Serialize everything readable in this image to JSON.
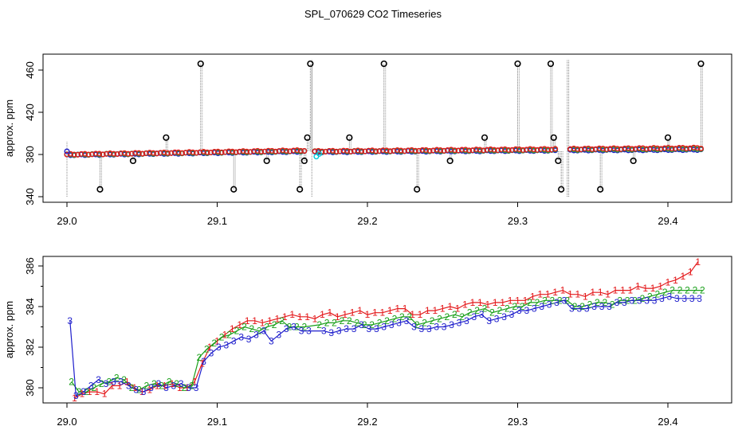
{
  "figure_title": "SPL_070629  CO2 Timeseries",
  "chart_data": [
    {
      "type": "scatter",
      "panel": "top",
      "title": "SPL_070629  CO2 Timeseries",
      "xlabel": "",
      "ylabel": "approx. ppm",
      "xlim": [
        29.0,
        29.43
      ],
      "ylim": [
        340,
        470
      ],
      "x_ticks": [
        "29.0",
        "29.1",
        "29.2",
        "29.3",
        "29.4"
      ],
      "y_ticks": [
        "340",
        "380",
        "420",
        "460"
      ],
      "series": [
        {
          "name": "1",
          "color": "#e41a1c",
          "segments": [
            [
              29.0,
              29.158,
              380.0,
              383.8
            ],
            [
              29.165,
              29.325,
              383.0,
              385.0
            ],
            [
              29.335,
              29.422,
              385.2,
              386.2
            ]
          ]
        },
        {
          "name": "2",
          "color": "#33a02c",
          "segments": [
            [
              29.0,
              29.158,
              379.8,
              383.3
            ],
            [
              29.165,
              29.325,
              382.8,
              384.3
            ],
            [
              29.335,
              29.422,
              384.6,
              385.4
            ]
          ]
        },
        {
          "name": "3",
          "color": "#1f1fcc",
          "segments": [
            [
              29.0,
              29.158,
              379.5,
              382.8
            ],
            [
              29.165,
              29.325,
              382.3,
              383.8
            ],
            [
              29.335,
              29.422,
              384.0,
              384.6
            ]
          ]
        },
        {
          "name": "cyan",
          "color": "#00c8d8",
          "points": [
            [
              29.166,
              378.0
            ],
            [
              29.168,
              380.5
            ]
          ]
        }
      ],
      "spikes": [
        {
          "x": 29.022,
          "y": 347
        },
        {
          "x": 29.044,
          "y": 374
        },
        {
          "x": 29.066,
          "y": 396
        },
        {
          "x": 29.089,
          "y": 466
        },
        {
          "x": 29.111,
          "y": 347
        },
        {
          "x": 29.133,
          "y": 374
        },
        {
          "x": 29.155,
          "y": 347
        },
        {
          "x": 29.158,
          "y": 374
        },
        {
          "x": 29.16,
          "y": 396
        },
        {
          "x": 29.162,
          "y": 466
        },
        {
          "x": 29.188,
          "y": 396
        },
        {
          "x": 29.211,
          "y": 466
        },
        {
          "x": 29.233,
          "y": 347
        },
        {
          "x": 29.255,
          "y": 374
        },
        {
          "x": 29.278,
          "y": 396
        },
        {
          "x": 29.3,
          "y": 466
        },
        {
          "x": 29.322,
          "y": 466
        },
        {
          "x": 29.324,
          "y": 396
        },
        {
          "x": 29.327,
          "y": 374
        },
        {
          "x": 29.329,
          "y": 347
        },
        {
          "x": 29.355,
          "y": 347
        },
        {
          "x": 29.377,
          "y": 374
        },
        {
          "x": 29.4,
          "y": 396
        },
        {
          "x": 29.422,
          "y": 466
        }
      ]
    },
    {
      "type": "line",
      "panel": "bottom",
      "title": "",
      "xlabel": "",
      "ylabel": "approx. ppm",
      "xlim": [
        29.0,
        29.43
      ],
      "ylim": [
        379.3,
        386.3
      ],
      "x_ticks": [
        "29.0",
        "29.1",
        "29.2",
        "29.3",
        "29.4"
      ],
      "y_ticks": [
        "380",
        "382",
        "384",
        "386"
      ],
      "series": [
        {
          "name": "1",
          "color": "#e41a1c",
          "x": [
            29.005,
            29.01,
            29.015,
            29.02,
            29.025,
            29.03,
            29.035,
            29.04,
            29.045,
            29.05,
            29.055,
            29.06,
            29.065,
            29.07,
            29.075,
            29.08,
            29.085,
            29.09,
            29.095,
            29.1,
            29.105,
            29.11,
            29.115,
            29.12,
            29.125,
            29.13,
            29.135,
            29.14,
            29.145,
            29.15,
            29.155,
            29.16,
            29.165,
            29.17,
            29.175,
            29.18,
            29.185,
            29.19,
            29.195,
            29.2,
            29.205,
            29.21,
            29.215,
            29.22,
            29.225,
            29.23,
            29.235,
            29.24,
            29.245,
            29.25,
            29.255,
            29.26,
            29.265,
            29.27,
            29.275,
            29.28,
            29.285,
            29.29,
            29.295,
            29.3,
            29.305,
            29.31,
            29.315,
            29.32,
            29.325,
            29.33,
            29.335,
            29.34,
            29.345,
            29.35,
            29.355,
            29.36,
            29.365,
            29.37,
            29.375,
            29.38,
            29.385,
            29.39,
            29.395,
            29.4,
            29.405,
            29.41,
            29.415,
            29.42
          ],
          "values": [
            379.5,
            379.7,
            379.8,
            379.8,
            379.7,
            380.1,
            380.1,
            380.3,
            380.0,
            379.8,
            379.9,
            380.1,
            380.1,
            380.2,
            380.0,
            380.0,
            380.3,
            381.2,
            382.0,
            382.3,
            382.6,
            382.9,
            383.1,
            383.3,
            383.3,
            383.2,
            383.3,
            383.4,
            383.5,
            383.6,
            383.5,
            383.5,
            383.4,
            383.6,
            383.7,
            383.5,
            383.6,
            383.7,
            383.8,
            383.6,
            383.7,
            383.7,
            383.8,
            383.9,
            383.9,
            383.6,
            383.6,
            383.8,
            383.8,
            383.9,
            384.0,
            383.9,
            384.1,
            384.2,
            384.2,
            384.1,
            384.2,
            384.2,
            384.3,
            384.3,
            384.3,
            384.5,
            384.6,
            384.6,
            384.7,
            384.8,
            384.6,
            384.6,
            384.5,
            384.7,
            384.7,
            384.6,
            384.8,
            384.8,
            384.8,
            385.0,
            384.9,
            384.9,
            385.0,
            385.2,
            385.3,
            385.5,
            385.7,
            386.2
          ]
        },
        {
          "name": "2",
          "color": "#1aa01a",
          "x": [
            29.003,
            29.008,
            29.013,
            29.018,
            29.023,
            29.028,
            29.033,
            29.038,
            29.043,
            29.048,
            29.053,
            29.058,
            29.063,
            29.068,
            29.073,
            29.078,
            29.083,
            29.088,
            29.093,
            29.098,
            29.103,
            29.108,
            29.113,
            29.118,
            29.123,
            29.128,
            29.133,
            29.138,
            29.143,
            29.148,
            29.153,
            29.158,
            29.168,
            29.173,
            29.178,
            29.183,
            29.188,
            29.193,
            29.198,
            29.203,
            29.208,
            29.213,
            29.218,
            29.223,
            29.228,
            29.233,
            29.238,
            29.243,
            29.248,
            29.253,
            29.258,
            29.263,
            29.268,
            29.273,
            29.278,
            29.283,
            29.288,
            29.293,
            29.298,
            29.303,
            29.308,
            29.313,
            29.318,
            29.323,
            29.328,
            29.333,
            29.338,
            29.343,
            29.348,
            29.353,
            29.358,
            29.363,
            29.368,
            29.373,
            29.378,
            29.383,
            29.388,
            29.393,
            29.398,
            29.403,
            29.408,
            29.413,
            29.418,
            29.423
          ],
          "values": [
            380.3,
            379.8,
            379.8,
            380.0,
            380.2,
            380.3,
            380.5,
            380.4,
            380.0,
            379.9,
            380.1,
            380.2,
            380.1,
            380.3,
            380.2,
            380.0,
            380.1,
            381.5,
            381.9,
            382.2,
            382.5,
            382.6,
            382.8,
            383.0,
            382.9,
            382.8,
            383.0,
            383.1,
            383.3,
            383.0,
            383.0,
            383.0,
            383.1,
            383.2,
            383.2,
            383.3,
            383.3,
            383.2,
            383.1,
            383.1,
            383.2,
            383.3,
            383.4,
            383.5,
            383.5,
            383.1,
            383.2,
            383.3,
            383.4,
            383.5,
            383.6,
            383.5,
            383.7,
            383.8,
            383.9,
            383.7,
            383.8,
            383.9,
            384.0,
            384.0,
            384.2,
            384.2,
            384.3,
            384.3,
            384.3,
            384.3,
            384.0,
            384.0,
            384.1,
            384.2,
            384.2,
            384.1,
            384.3,
            384.3,
            384.3,
            384.4,
            384.5,
            384.6,
            384.7,
            384.8,
            384.8,
            384.8,
            384.8,
            384.8
          ]
        },
        {
          "name": "3",
          "color": "#1f1fcc",
          "x": [
            29.002,
            29.006,
            29.011,
            29.016,
            29.021,
            29.026,
            29.031,
            29.036,
            29.041,
            29.046,
            29.051,
            29.056,
            29.061,
            29.066,
            29.071,
            29.076,
            29.081,
            29.086,
            29.091,
            29.096,
            29.101,
            29.106,
            29.111,
            29.116,
            29.121,
            29.126,
            29.131,
            29.136,
            29.141,
            29.146,
            29.151,
            29.156,
            29.161,
            29.171,
            29.176,
            29.181,
            29.186,
            29.191,
            29.196,
            29.201,
            29.206,
            29.211,
            29.216,
            29.221,
            29.226,
            29.231,
            29.236,
            29.241,
            29.246,
            29.251,
            29.256,
            29.261,
            29.266,
            29.271,
            29.276,
            29.281,
            29.286,
            29.291,
            29.296,
            29.301,
            29.306,
            29.311,
            29.316,
            29.321,
            29.326,
            29.331,
            29.336,
            29.341,
            29.346,
            29.351,
            29.356,
            29.361,
            29.366,
            29.371,
            29.376,
            29.381,
            29.386,
            29.391,
            29.396,
            29.401,
            29.406,
            29.411,
            29.416,
            29.421
          ],
          "values": [
            383.3,
            379.6,
            379.8,
            380.1,
            380.4,
            380.2,
            380.3,
            380.3,
            380.1,
            379.9,
            379.8,
            380.0,
            380.2,
            380.0,
            380.1,
            380.2,
            380.0,
            380.0,
            381.3,
            381.7,
            382.0,
            382.1,
            382.3,
            382.5,
            382.4,
            382.6,
            382.8,
            382.3,
            382.6,
            382.9,
            383.0,
            382.8,
            382.8,
            382.8,
            382.7,
            382.8,
            382.9,
            382.9,
            383.1,
            382.9,
            382.9,
            383.0,
            383.1,
            383.2,
            383.3,
            383.0,
            382.9,
            382.9,
            383.0,
            383.0,
            383.1,
            383.2,
            383.3,
            383.5,
            383.6,
            383.3,
            383.4,
            383.5,
            383.6,
            383.8,
            383.8,
            383.9,
            384.0,
            384.1,
            384.2,
            384.3,
            383.9,
            383.9,
            383.9,
            384.0,
            384.0,
            384.0,
            384.2,
            384.2,
            384.3,
            384.3,
            384.3,
            384.3,
            384.4,
            384.5,
            384.4,
            384.4,
            384.4,
            384.4
          ]
        }
      ]
    }
  ]
}
